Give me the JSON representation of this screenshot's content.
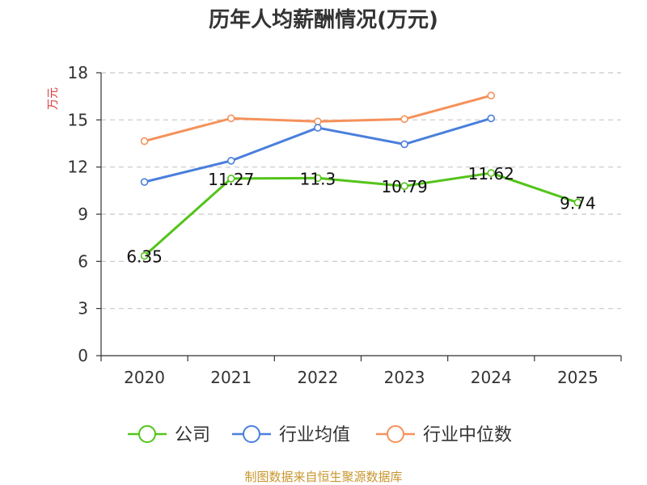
{
  "chart_data": {
    "type": "line",
    "title": "历年人均薪酬情况(万元)",
    "ylabel": "万元",
    "xlabel": "",
    "categories": [
      "2020",
      "2021",
      "2022",
      "2023",
      "2024",
      "2025"
    ],
    "ylim": [
      0,
      18
    ],
    "yticks": [
      0,
      3,
      6,
      9,
      12,
      15,
      18
    ],
    "grid": true,
    "legend_position": "bottom",
    "series": [
      {
        "name": "公司",
        "color": "#52c41a",
        "values": [
          6.35,
          11.27,
          11.3,
          10.79,
          11.62,
          9.74
        ],
        "labels": [
          "6.35",
          "11.27",
          "11.3",
          "10.79",
          "11.62",
          "9.74"
        ]
      },
      {
        "name": "行业均值",
        "color": "#4a7fdc",
        "values": [
          11.05,
          12.4,
          14.5,
          13.45,
          15.1,
          null
        ]
      },
      {
        "name": "行业中位数",
        "color": "#f5915a",
        "values": [
          13.65,
          15.1,
          14.9,
          15.05,
          16.55,
          null
        ]
      }
    ]
  },
  "source": "制图数据来自恒生聚源数据库"
}
